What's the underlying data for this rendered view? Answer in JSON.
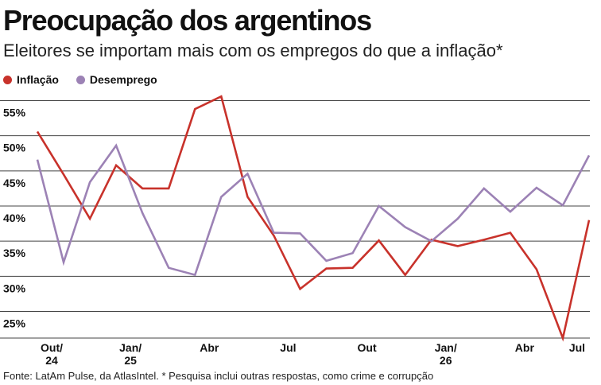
{
  "title": "Preocupação dos argentinos",
  "subtitle": "Eleitores se importam mais com os empregos do que a inflação*",
  "footnote": "Fonte: LatAm Pulse, da AtlasIntel. * Pesquisa inclui outras respostas, como crime e corrupção",
  "chart_data": {
    "type": "line",
    "legend_position": "top-left",
    "grid": true,
    "ylim": [
      20,
      57
    ],
    "yticks": [
      {
        "value": 25,
        "label": "25%"
      },
      {
        "value": 30,
        "label": "30%"
      },
      {
        "value": 35,
        "label": "35%"
      },
      {
        "value": 40,
        "label": "40%"
      },
      {
        "value": 45,
        "label": "45%"
      },
      {
        "value": 50,
        "label": "50%"
      },
      {
        "value": 55,
        "label": "55%"
      }
    ],
    "xticks": [
      {
        "index": 0,
        "label": [
          "Out/",
          "24"
        ]
      },
      {
        "index": 3,
        "label": [
          "Jan/",
          "25"
        ]
      },
      {
        "index": 6,
        "label": [
          "Abr"
        ]
      },
      {
        "index": 9,
        "label": [
          "Jul"
        ]
      },
      {
        "index": 12,
        "label": [
          "Out"
        ]
      },
      {
        "index": 15,
        "label": [
          "Jan/",
          "26"
        ]
      },
      {
        "index": 18,
        "label": [
          "Abr"
        ]
      },
      {
        "index": 20,
        "label": [
          "Jul"
        ]
      }
    ],
    "series": [
      {
        "name": "Inflação",
        "color": "#c8322b",
        "values": [
          50.6,
          44.5,
          38.2,
          45.8,
          42.5,
          42.5,
          53.8,
          55.6,
          41.3,
          35.8,
          28.2,
          31.1,
          31.2,
          35.1,
          30.2,
          35.2,
          34.3,
          35.2,
          36.2,
          31.0,
          21.2,
          38.0
        ]
      },
      {
        "name": "Desemprego",
        "color": "#9c82b5",
        "values": [
          46.6,
          32.0,
          43.4,
          48.6,
          39.0,
          31.2,
          30.2,
          41.3,
          44.6,
          36.2,
          36.1,
          32.2,
          33.3,
          40.0,
          37.0,
          35.0,
          38.2,
          42.5,
          39.2,
          42.6,
          40.1,
          47.2
        ]
      }
    ]
  }
}
